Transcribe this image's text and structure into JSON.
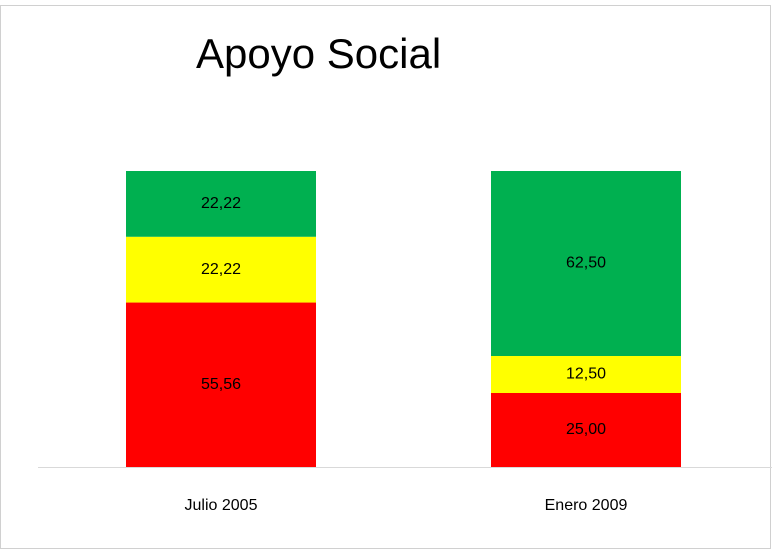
{
  "chart_data": {
    "type": "stacked_bar",
    "title": "Apoyo Social",
    "categories": [
      "Julio 2005",
      "Enero 2009"
    ],
    "series": [
      {
        "color": "#ff0000",
        "values": [
          55.56,
          25.0
        ],
        "value_labels": [
          "55,56",
          "25,00"
        ]
      },
      {
        "color": "#ffff00",
        "values": [
          22.22,
          12.5
        ],
        "value_labels": [
          "22,22",
          "12,50"
        ]
      },
      {
        "color": "#00b050",
        "values": [
          22.22,
          62.5
        ],
        "value_labels": [
          "22,22",
          "62,50"
        ]
      }
    ],
    "ylim": [
      0,
      100
    ]
  }
}
